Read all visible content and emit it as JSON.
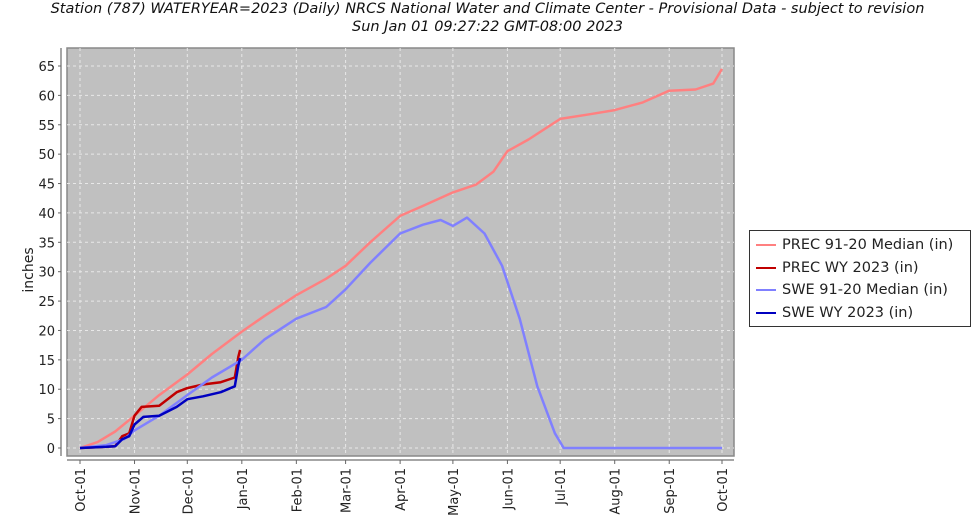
{
  "title": {
    "line1": "Station (787) WATERYEAR=2023 (Daily) NRCS National Water and Climate Center - Provisional Data - subject to revision",
    "line2": "Sun Jan 01 09:27:22 GMT-08:00 2023"
  },
  "axes": {
    "ylabel": "inches",
    "yticks": [
      "0",
      "5",
      "10",
      "15",
      "20",
      "25",
      "30",
      "35",
      "40",
      "45",
      "50",
      "55",
      "60",
      "65"
    ],
    "xticks": [
      "Oct-01",
      "Nov-01",
      "Dec-01",
      "Jan-01",
      "Feb-01",
      "Mar-01",
      "Apr-01",
      "May-01",
      "Jun-01",
      "Jul-01",
      "Aug-01",
      "Sep-01",
      "Oct-01"
    ]
  },
  "legend": [
    {
      "label": "PREC 91-20 Median (in)",
      "color": "#ff8080"
    },
    {
      "label": "PREC WY 2023  (in)",
      "color": "#c00000"
    },
    {
      "label": "SWE 91-20 Median (in)",
      "color": "#8080ff"
    },
    {
      "label": "SWE WY 2023  (in)",
      "color": "#0000c0"
    }
  ],
  "colors": {
    "plot_bg": "#c0c0c0",
    "grid": "#e8e8e8"
  },
  "chart_data": {
    "type": "line",
    "title": "Station (787) WATERYEAR=2023 (Daily) NRCS National Water and Climate Center - Provisional Data - subject to revision",
    "subtitle": "Sun Jan 01 09:27:22 GMT-08:00 2023",
    "xlabel": "",
    "ylabel": "inches",
    "ylim": [
      0,
      65
    ],
    "grid": true,
    "legend_position": "right",
    "x_tick_days": [
      0,
      31,
      61,
      92,
      123,
      151,
      182,
      212,
      243,
      273,
      304,
      335,
      365
    ],
    "series": [
      {
        "name": "PREC 91-20 Median (in)",
        "color": "#ff8080",
        "days": [
          0,
          10,
          20,
          31,
          45,
          61,
          75,
          92,
          105,
          123,
          140,
          151,
          165,
          182,
          195,
          212,
          225,
          235,
          243,
          255,
          273,
          290,
          304,
          320,
          335,
          350,
          360,
          365
        ],
        "values": [
          0,
          1.0,
          2.8,
          5.5,
          9.0,
          12.5,
          16.0,
          19.8,
          22.5,
          26.0,
          28.8,
          31.0,
          35.0,
          39.5,
          41.2,
          43.5,
          44.8,
          47.0,
          50.5,
          52.5,
          56.0,
          56.8,
          57.5,
          58.8,
          60.8,
          61.0,
          62.0,
          64.5
        ]
      },
      {
        "name": "PREC WY 2023  (in)",
        "color": "#c00000",
        "days": [
          0,
          15,
          20,
          24,
          28,
          31,
          35,
          45,
          55,
          61,
          70,
          80,
          88,
          90,
          91
        ],
        "values": [
          0,
          0.2,
          0.3,
          2.0,
          2.5,
          5.5,
          7.0,
          7.2,
          9.5,
          10.2,
          10.8,
          11.2,
          12.0,
          15.5,
          16.7
        ]
      },
      {
        "name": "SWE 91-20 Median (in)",
        "color": "#8080ff",
        "days": [
          0,
          15,
          25,
          31,
          45,
          61,
          75,
          92,
          105,
          123,
          140,
          151,
          165,
          182,
          195,
          205,
          212,
          220,
          230,
          240,
          250,
          260,
          270,
          275,
          290,
          320,
          365
        ],
        "values": [
          0,
          0.5,
          1.5,
          3.0,
          5.5,
          9.0,
          12.0,
          15.0,
          18.5,
          22.0,
          24.0,
          27.0,
          31.5,
          36.5,
          38.0,
          38.8,
          37.8,
          39.2,
          36.5,
          31.0,
          22.0,
          10.5,
          2.5,
          0,
          0,
          0,
          0
        ]
      },
      {
        "name": "SWE WY 2023  (in)",
        "color": "#0000c0",
        "days": [
          0,
          15,
          20,
          24,
          28,
          31,
          36,
          45,
          55,
          61,
          70,
          80,
          88,
          90,
          91
        ],
        "values": [
          0,
          0.2,
          0.3,
          1.5,
          2.0,
          4.0,
          5.3,
          5.5,
          7.0,
          8.3,
          8.8,
          9.5,
          10.5,
          14.0,
          15.3
        ]
      }
    ]
  }
}
